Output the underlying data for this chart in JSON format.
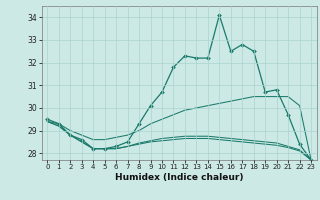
{
  "xlabel": "Humidex (Indice chaleur)",
  "background_color": "#cce9e6",
  "grid_color": "#aad4cf",
  "line_color": "#1a7a6a",
  "xlim": [
    -0.5,
    23.5
  ],
  "ylim": [
    27.7,
    34.5
  ],
  "yticks": [
    28,
    29,
    30,
    31,
    32,
    33,
    34
  ],
  "xticks": [
    0,
    1,
    2,
    3,
    4,
    5,
    6,
    7,
    8,
    9,
    10,
    11,
    12,
    13,
    14,
    15,
    16,
    17,
    18,
    19,
    20,
    21,
    22,
    23
  ],
  "main_x": [
    0,
    1,
    2,
    3,
    4,
    5,
    6,
    7,
    8,
    9,
    10,
    11,
    12,
    13,
    14,
    15,
    16,
    17,
    18,
    19,
    20,
    21,
    22,
    23
  ],
  "main_y": [
    29.5,
    29.3,
    28.8,
    28.6,
    28.2,
    28.2,
    28.3,
    28.5,
    29.3,
    30.1,
    30.7,
    31.8,
    32.3,
    32.2,
    32.2,
    34.1,
    32.5,
    32.8,
    32.5,
    30.7,
    30.8,
    29.7,
    28.4,
    27.7
  ],
  "trend1_x": [
    0,
    1,
    2,
    3,
    4,
    5,
    6,
    7,
    8,
    9,
    10,
    11,
    12,
    13,
    14,
    15,
    16,
    17,
    18,
    19,
    20,
    21,
    22,
    23
  ],
  "trend1_y": [
    29.4,
    29.3,
    29.0,
    28.8,
    28.6,
    28.6,
    28.7,
    28.8,
    29.0,
    29.3,
    29.5,
    29.7,
    29.9,
    30.0,
    30.1,
    30.2,
    30.3,
    30.4,
    30.5,
    30.5,
    30.5,
    30.5,
    30.1,
    27.7
  ],
  "trend2_x": [
    0,
    1,
    2,
    3,
    4,
    5,
    6,
    7,
    8,
    9,
    10,
    11,
    12,
    13,
    14,
    15,
    16,
    17,
    18,
    19,
    20,
    21,
    22,
    23
  ],
  "trend2_y": [
    29.4,
    29.2,
    28.8,
    28.5,
    28.2,
    28.2,
    28.2,
    28.3,
    28.4,
    28.5,
    28.55,
    28.6,
    28.65,
    28.65,
    28.65,
    28.6,
    28.55,
    28.5,
    28.45,
    28.4,
    28.35,
    28.25,
    28.1,
    27.7
  ],
  "trend3_x": [
    0,
    1,
    2,
    3,
    4,
    5,
    6,
    7,
    8,
    9,
    10,
    11,
    12,
    13,
    14,
    15,
    16,
    17,
    18,
    19,
    20,
    21,
    22,
    23
  ],
  "trend3_y": [
    29.4,
    29.2,
    28.8,
    28.5,
    28.2,
    28.2,
    28.2,
    28.3,
    28.45,
    28.55,
    28.65,
    28.7,
    28.75,
    28.75,
    28.75,
    28.7,
    28.65,
    28.6,
    28.55,
    28.5,
    28.45,
    28.3,
    28.15,
    27.7
  ]
}
